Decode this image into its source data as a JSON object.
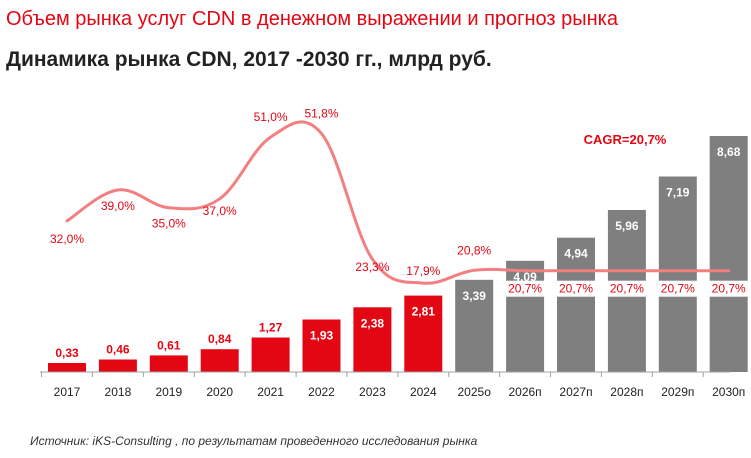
{
  "header": {
    "title": "Объем рынка услуг CDN в денежном выражении и прогноз рынка",
    "subtitle": "Динамика рынка   CDN,  2017 -2030  гг., млрд руб."
  },
  "footer": {
    "source": "Источник: iKS-Consulting , по результатам проведенного исследования рынка"
  },
  "chart_data": {
    "type": "bar",
    "title": "Динамика рынка   CDN,  2017 -2030  гг., млрд руб.",
    "xlabel": "",
    "ylabel": "",
    "ylim": [
      0,
      9.5
    ],
    "grid": false,
    "categories": [
      "2017",
      "2018",
      "2019",
      "2020",
      "2021",
      "2022",
      "2023",
      "2024",
      "2025о",
      "2026п",
      "2027п",
      "2028п",
      "2029п",
      "2030п"
    ],
    "series": [
      {
        "kind": "bar",
        "values": [
          0.33,
          0.46,
          0.61,
          0.84,
          1.27,
          1.93,
          2.38,
          2.81,
          3.39,
          4.09,
          4.94,
          5.96,
          7.19,
          8.68
        ],
        "labels": [
          "0,33",
          "0,46",
          "0,61",
          "0,84",
          "1,27",
          "1,93",
          "2,38",
          "2,81",
          "3,39",
          "4,09",
          "4,94",
          "5,96",
          "7,19",
          "8,68"
        ],
        "colors": [
          "#e30613",
          "#e30613",
          "#e30613",
          "#e30613",
          "#e30613",
          "#e30613",
          "#e30613",
          "#e30613",
          "#7f7f7f",
          "#7f7f7f",
          "#7f7f7f",
          "#7f7f7f",
          "#7f7f7f",
          "#7f7f7f"
        ]
      },
      {
        "kind": "line",
        "unit": "%",
        "values": [
          32.0,
          39.0,
          35.0,
          37.0,
          51.0,
          51.8,
          23.3,
          17.9,
          20.8,
          20.7,
          20.7,
          20.7,
          20.7,
          20.7
        ],
        "labels": [
          "32,0%",
          "39,0%",
          "35,0%",
          "37,0%",
          "51,0%",
          "51,8%",
          "23,3%",
          "17,9%",
          "20,8%",
          "20,7%",
          "20,7%",
          "20,7%",
          "20,7%",
          "20,7%"
        ],
        "color": "#f28080"
      }
    ],
    "annotations": [
      {
        "text": "CAGR=20,7%",
        "color": "#e30613"
      }
    ],
    "colors": {
      "actual": "#e30613",
      "forecast": "#7f7f7f",
      "growth_line": "#f28080",
      "growth_label": "#e30613"
    }
  }
}
